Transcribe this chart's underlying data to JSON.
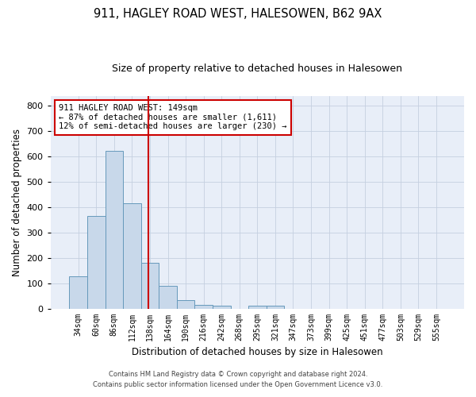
{
  "title": "911, HAGLEY ROAD WEST, HALESOWEN, B62 9AX",
  "subtitle": "Size of property relative to detached houses in Halesowen",
  "xlabel": "Distribution of detached houses by size in Halesowen",
  "ylabel": "Number of detached properties",
  "bar_values": [
    128,
    365,
    622,
    415,
    180,
    88,
    33,
    15,
    10,
    0,
    10,
    10,
    0,
    0,
    0,
    0,
    0,
    0,
    0,
    0,
    0
  ],
  "bar_labels": [
    "34sqm",
    "60sqm",
    "86sqm",
    "112sqm",
    "138sqm",
    "164sqm",
    "190sqm",
    "216sqm",
    "242sqm",
    "268sqm",
    "295sqm",
    "321sqm",
    "347sqm",
    "373sqm",
    "399sqm",
    "425sqm",
    "451sqm",
    "477sqm",
    "503sqm",
    "529sqm",
    "555sqm"
  ],
  "bar_color": "#c8d8ea",
  "bar_edge_color": "#6699bb",
  "annotation_text": "911 HAGLEY ROAD WEST: 149sqm\n← 87% of detached houses are smaller (1,611)\n12% of semi-detached houses are larger (230) →",
  "ylim": [
    0,
    840
  ],
  "yticks": [
    0,
    100,
    200,
    300,
    400,
    500,
    600,
    700,
    800
  ],
  "annotation_box_color": "#ffffff",
  "annotation_box_edge": "#cc0000",
  "vline_color": "#cc0000",
  "grid_color": "#c5cfe0",
  "background_color": "#e8eef8",
  "footer_line1": "Contains HM Land Registry data © Crown copyright and database right 2024.",
  "footer_line2": "Contains public sector information licensed under the Open Government Licence v3.0."
}
